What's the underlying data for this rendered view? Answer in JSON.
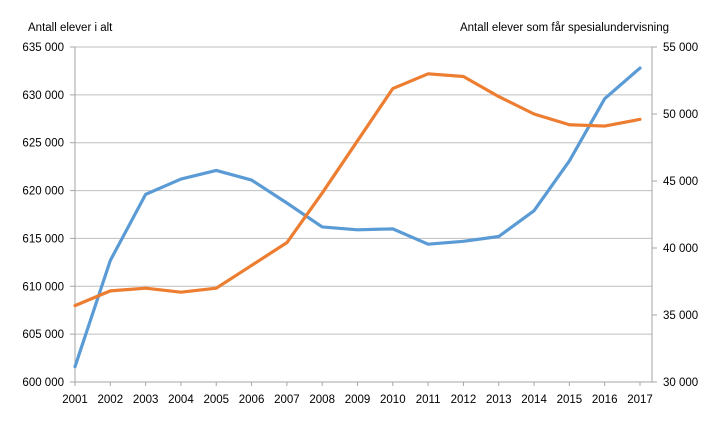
{
  "chart": {
    "left_axis_title": "Antall elever i alt",
    "right_axis_title": "Antall elever som får spesialundervisning"
  },
  "chart_data": {
    "type": "line",
    "title": "",
    "categories": [
      "2001",
      "2002",
      "2003",
      "2004",
      "2005",
      "2006",
      "2007",
      "2008",
      "2009",
      "2010",
      "2011",
      "2012",
      "2013",
      "2014",
      "2015",
      "2016",
      "2017"
    ],
    "series": [
      {
        "name": "Antall elever i alt",
        "axis": "left",
        "color": "#5B9BD5",
        "values": [
          601600,
          612700,
          619600,
          621200,
          622100,
          621100,
          618700,
          616200,
          615900,
          616000,
          614400,
          614700,
          615200,
          617900,
          623100,
          629600,
          632800
        ]
      },
      {
        "name": "Antall elever som får spesialundervisning",
        "axis": "right",
        "color": "#ED7D31",
        "values": [
          35700,
          36800,
          37000,
          36700,
          37000,
          38700,
          40400,
          44100,
          48000,
          51900,
          53000,
          52800,
          51300,
          50000,
          49200,
          49100,
          49600
        ]
      }
    ],
    "left_axis": {
      "title": "Antall elever i alt",
      "min": 600000,
      "max": 635000,
      "step": 5000,
      "tick_labels": [
        "635 000",
        "630 000",
        "625 000",
        "620 000",
        "615 000",
        "610 000",
        "605 000",
        "600 000"
      ]
    },
    "right_axis": {
      "title": "Antall elever som får spesialundervisning",
      "min": 30000,
      "max": 55000,
      "step": 5000,
      "tick_labels": [
        "55 000",
        "50 000",
        "45 000",
        "40 000",
        "35 000",
        "30 000"
      ]
    },
    "grid": true,
    "legend_position": "none",
    "colors": {
      "gridline": "#BFBFBF",
      "axis_line": "#A6A6A6",
      "text": "#000000"
    }
  }
}
